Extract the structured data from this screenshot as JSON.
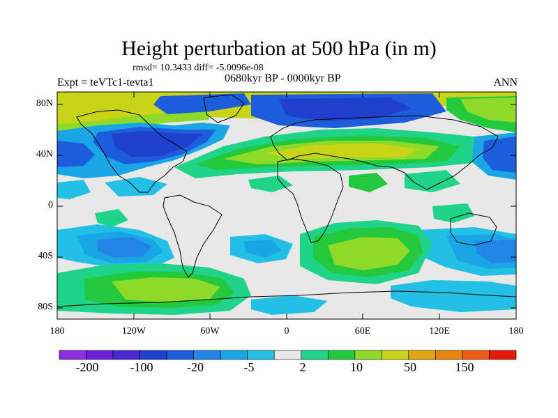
{
  "title": "Height perturbation at 500 hPa (in m)",
  "stats_line": "rmsd= 10.3433 diff= -5.0096e-08",
  "experiment": "Expt = teVTc1-tevta1",
  "period": "0680kyr BP - 0000kyr BP",
  "season": "ANN",
  "lat_labels": [
    "80N",
    "40N",
    "0",
    "40S",
    "80S"
  ],
  "lon_labels": [
    "180",
    "120W",
    "60W",
    "0",
    "60E",
    "120E",
    "180"
  ],
  "colorbar": {
    "colors": [
      "#8c2fe0",
      "#6a1fd8",
      "#4a28d0",
      "#1f3fcf",
      "#1c5ddc",
      "#1f86e6",
      "#1aa6e6",
      "#22c0e4",
      "#e8e8e8",
      "#1fd388",
      "#22c93c",
      "#8fd928",
      "#c7d417",
      "#e0a710",
      "#e8840e",
      "#ed5a14",
      "#e61a0a"
    ],
    "tick_labels": [
      "-200",
      "-100",
      "-20",
      "-5",
      "2",
      "10",
      "50",
      "150"
    ]
  },
  "palette": {
    "neutral": "#e8e8e8",
    "cyan": "#22c0e4",
    "blue_light": "#1aa6e6",
    "blue": "#1f86e6",
    "blue_mid": "#1c5ddc",
    "blue_deep": "#1f3fcf",
    "teal": "#1fd388",
    "green": "#22c93c",
    "yellowgreen": "#8fd928",
    "yellow": "#c7d417"
  }
}
